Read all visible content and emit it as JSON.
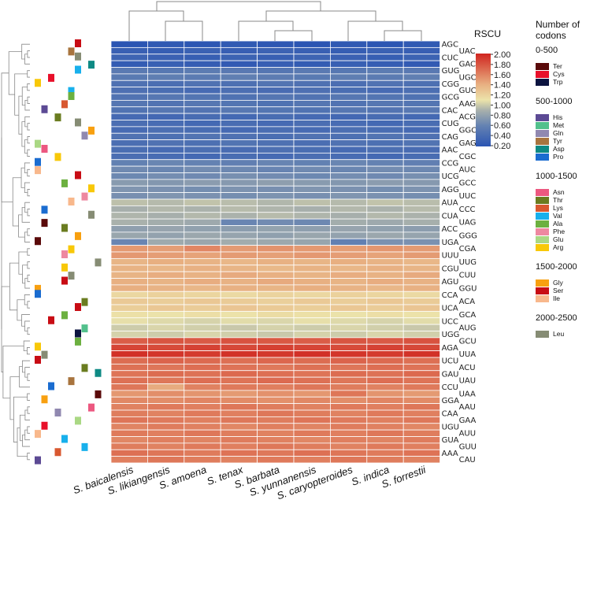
{
  "chart_data": {
    "type": "heatmap",
    "title": "",
    "colorbar_title": "RSCU",
    "colorbar_ticks": [
      "2.00",
      "1.80",
      "1.60",
      "1.40",
      "1.20",
      "1.00",
      "0.80",
      "0.60",
      "0.40",
      "0.20"
    ],
    "zlim": [
      0.2,
      2.0
    ],
    "columns": [
      "S. baicalensis",
      "S. likiangensis",
      "S. amoena",
      "S. tenax",
      "S. barbata",
      "S. yunnanensis",
      "S. caryopteroides",
      "S. indica",
      "S. forrestii"
    ],
    "rows": [
      "AGC",
      "UAC",
      "CUC",
      "GAC",
      "GUG",
      "UGC",
      "CGG",
      "GUC",
      "GCG",
      "AAG",
      "CAC",
      "ACG",
      "CUG",
      "GGC",
      "CAG",
      "GAG",
      "AAC",
      "CGC",
      "CCG",
      "AUC",
      "UCG",
      "GCC",
      "AGG",
      "UUC",
      "AUA",
      "CCC",
      "CUA",
      "UAG",
      "ACC",
      "GGG",
      "UGA",
      "CGA",
      "UUU",
      "UUG",
      "CGU",
      "CUU",
      "AGU",
      "GGU",
      "CCA",
      "ACA",
      "UCA",
      "GCA",
      "UCC",
      "AUG",
      "UGG",
      "GCU",
      "AGA",
      "UUA",
      "UCU",
      "ACU",
      "GAU",
      "UAU",
      "CCU",
      "UAA",
      "GGA",
      "AAU",
      "CAA",
      "GAA",
      "UGU",
      "AUU",
      "GUA",
      "GUU",
      "AAA",
      "CAU"
    ],
    "row_base_values": [
      0.22,
      0.3,
      0.31,
      0.27,
      0.52,
      0.55,
      0.45,
      0.42,
      0.48,
      0.48,
      0.49,
      0.39,
      0.4,
      0.41,
      0.45,
      0.45,
      0.42,
      0.4,
      0.6,
      0.64,
      0.66,
      0.76,
      0.7,
      0.7,
      0.95,
      0.92,
      0.92,
      0.88,
      0.8,
      0.82,
      0.85,
      1.5,
      1.48,
      1.38,
      1.37,
      1.4,
      1.4,
      1.38,
      1.18,
      1.24,
      1.25,
      1.12,
      1.06,
      1.02,
      1.02,
      1.78,
      1.86,
      1.93,
      1.7,
      1.66,
      1.68,
      1.67,
      1.62,
      1.52,
      1.56,
      1.62,
      1.62,
      1.63,
      1.6,
      1.62,
      1.6,
      1.62,
      1.65,
      1.62
    ],
    "cell_overrides": [
      {
        "row": "UAG",
        "col": "S. tenax",
        "value": 0.62
      },
      {
        "row": "UAG",
        "col": "S. barbata",
        "value": 0.66
      },
      {
        "row": "UAG",
        "col": "S. yunnanensis",
        "value": 0.64
      },
      {
        "row": "UGA",
        "col": "S. baicalensis",
        "value": 0.62
      },
      {
        "row": "UGA",
        "col": "S. caryopteroides",
        "value": 0.58
      },
      {
        "row": "UGA",
        "col": "S. indica",
        "value": 0.7
      },
      {
        "row": "UGA",
        "col": "S. forrestii",
        "value": 0.7
      },
      {
        "row": "CGA",
        "col": "S. amoena",
        "value": 1.58
      },
      {
        "row": "CCU",
        "col": "S. likiangensis",
        "value": 1.42
      },
      {
        "row": "UAA",
        "col": "S. caryopteroides",
        "value": 1.65
      }
    ],
    "row_amino_acid": [
      "Ser",
      "Tyr",
      "Leu",
      "Asp",
      "Val",
      "Cys",
      "Arg",
      "Val",
      "Ala",
      "Lys",
      "His",
      "Thr",
      "Leu",
      "Gly",
      "Gln",
      "Glu",
      "Asn",
      "Arg",
      "Pro",
      "Ile",
      "Ser",
      "Ala",
      "Arg",
      "Phe",
      "Ile",
      "Pro",
      "Leu",
      "Ter",
      "Thr",
      "Gly",
      "Ter",
      "Arg",
      "Phe",
      "Leu",
      "Arg",
      "Leu",
      "Ser",
      "Gly",
      "Pro",
      "Thr",
      "Ser",
      "Ala",
      "Ser",
      "Met",
      "Trp",
      "Ala",
      "Arg",
      "Leu",
      "Ser",
      "Thr",
      "Asp",
      "Tyr",
      "Pro",
      "Ter",
      "Gly",
      "Asn",
      "Gln",
      "Glu",
      "Cys",
      "Ile",
      "Val",
      "Val",
      "Lys",
      "His"
    ]
  },
  "legend": {
    "title": "Number of codons",
    "groups": [
      {
        "label": "0-500",
        "items": [
          {
            "name": "Ter",
            "color": "#5a0a0a"
          },
          {
            "name": "Cys",
            "color": "#e8102a"
          },
          {
            "name": "Trp",
            "color": "#0c1440"
          }
        ]
      },
      {
        "label": "500-1000",
        "items": [
          {
            "name": "His",
            "color": "#5c4a94"
          },
          {
            "name": "Met",
            "color": "#52c08c"
          },
          {
            "name": "Gln",
            "color": "#9088b0"
          },
          {
            "name": "Tyr",
            "color": "#a8743e"
          },
          {
            "name": "Asp",
            "color": "#0e8a84"
          },
          {
            "name": "Pro",
            "color": "#1a6cd0"
          }
        ]
      },
      {
        "label": "1000-1500",
        "items": [
          {
            "name": "Asn",
            "color": "#ec5880"
          },
          {
            "name": "Thr",
            "color": "#6a7c20"
          },
          {
            "name": "Lys",
            "color": "#d85830"
          },
          {
            "name": "Val",
            "color": "#18b0ec"
          },
          {
            "name": "Ala",
            "color": "#6cb040"
          },
          {
            "name": "Phe",
            "color": "#ee88a0"
          },
          {
            "name": "Glu",
            "color": "#aad884"
          },
          {
            "name": "Arg",
            "color": "#f8c808"
          }
        ]
      },
      {
        "label": "1500-2000",
        "items": [
          {
            "name": "Gly",
            "color": "#f8a010"
          },
          {
            "name": "Ser",
            "color": "#c80c14"
          },
          {
            "name": "Ile",
            "color": "#f8b88c"
          }
        ]
      },
      {
        "label": "2000-2500",
        "items": [
          {
            "name": "Leu",
            "color": "#868c74"
          }
        ]
      }
    ]
  }
}
